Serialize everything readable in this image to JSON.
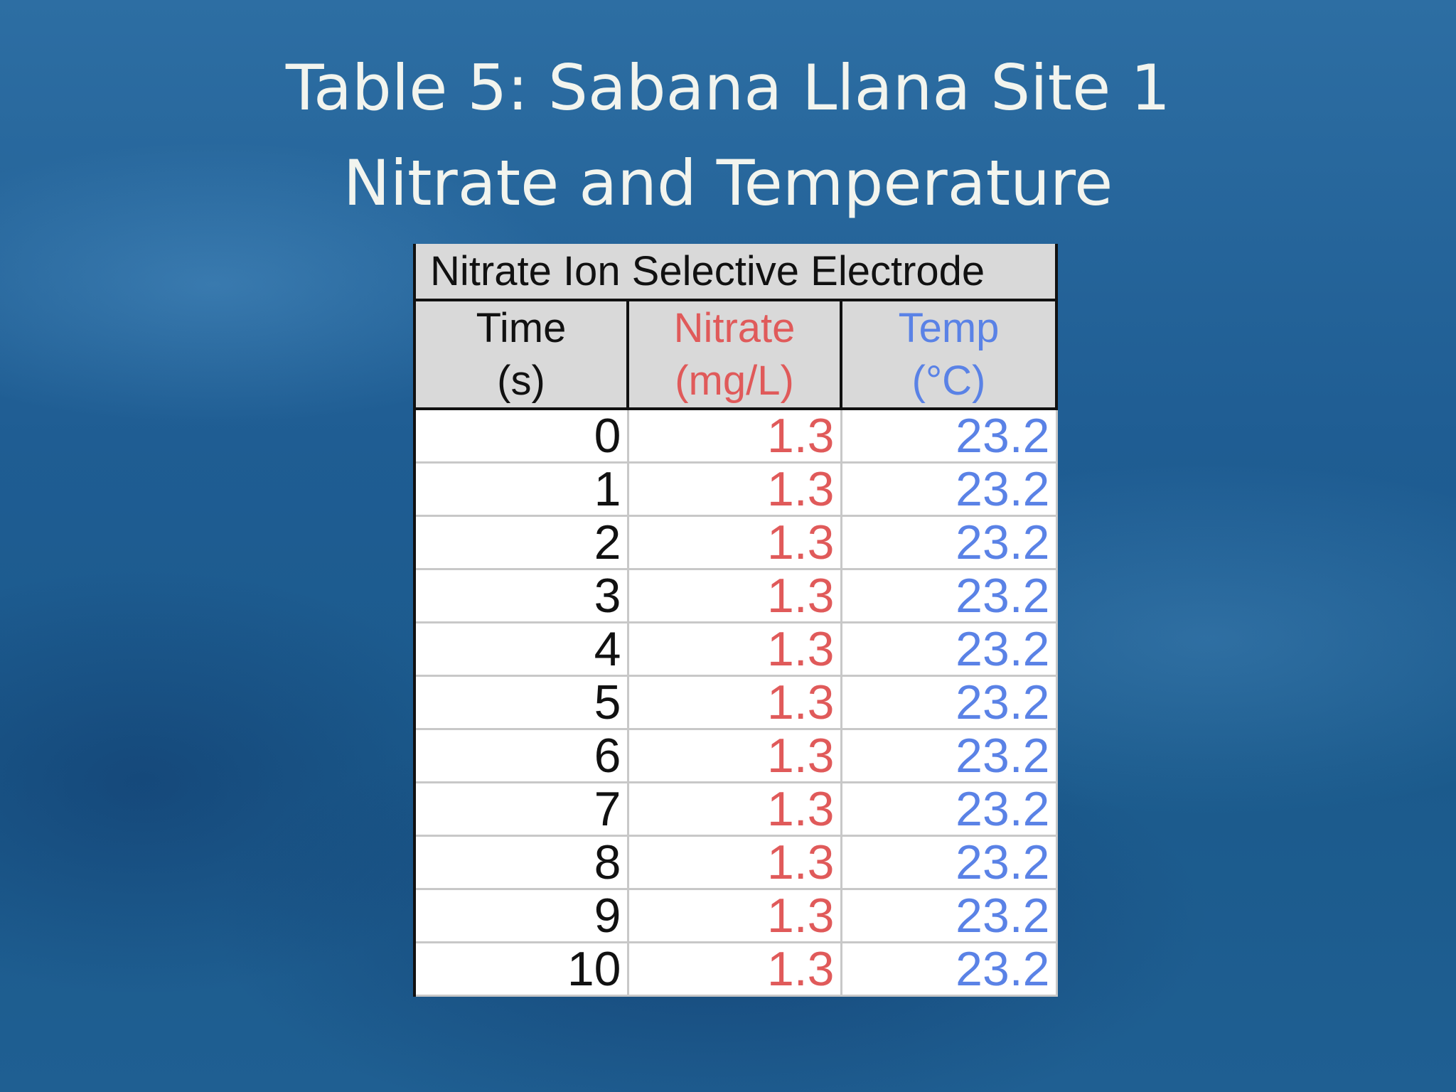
{
  "title": {
    "line1": "Table 5: Sabana Llana Site 1",
    "line2": "Nitrate and Temperature"
  },
  "table": {
    "caption": "Nitrate Ion Selective Electrode",
    "headers": [
      [
        "Time",
        "(s)"
      ],
      [
        "Nitrate",
        "(mg/L)"
      ],
      [
        "Temp",
        "(°C)"
      ]
    ],
    "rows": [
      [
        0,
        1.3,
        23.2
      ],
      [
        1,
        1.3,
        23.2
      ],
      [
        2,
        1.3,
        23.2
      ],
      [
        3,
        1.3,
        23.2
      ],
      [
        4,
        1.3,
        23.2
      ],
      [
        5,
        1.3,
        23.2
      ],
      [
        6,
        1.3,
        23.2
      ],
      [
        7,
        1.3,
        23.2
      ],
      [
        8,
        1.3,
        23.2
      ],
      [
        9,
        1.3,
        23.2
      ],
      [
        10,
        1.3,
        23.2
      ]
    ]
  }
}
